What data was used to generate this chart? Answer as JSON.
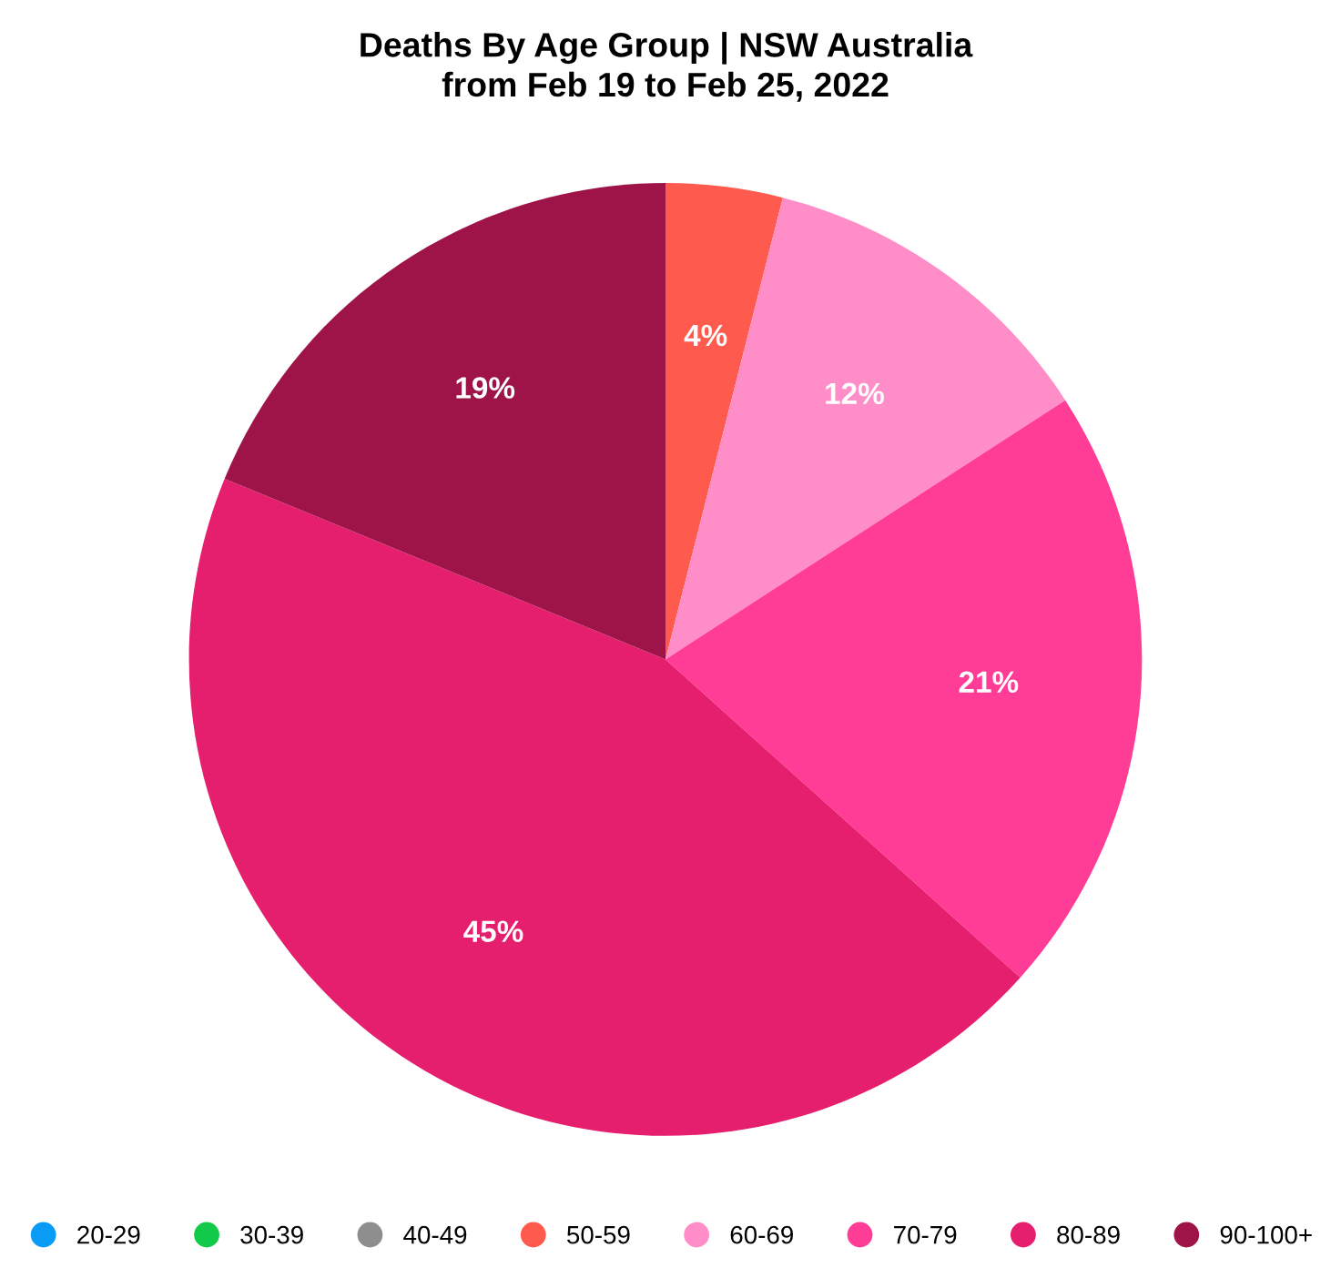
{
  "chart_data": {
    "type": "pie",
    "title": "Deaths By Age Group | NSW Australia\nfrom Feb 19 to Feb 25, 2022",
    "categories": [
      "20-29",
      "30-39",
      "40-49",
      "50-59",
      "60-69",
      "70-79",
      "80-89",
      "90-100+"
    ],
    "values": [
      0,
      0,
      0,
      4,
      12,
      21,
      45,
      19
    ],
    "value_labels": [
      null,
      null,
      null,
      "4%",
      "12%",
      "21%",
      "45%",
      "19%"
    ],
    "colors": [
      "#0a9cf5",
      "#12c94a",
      "#8e8e8e",
      "#ff5a4e",
      "#ff8ec8",
      "#ff3d96",
      "#e61e6e",
      "#9e1448"
    ],
    "legend": "bottom"
  }
}
